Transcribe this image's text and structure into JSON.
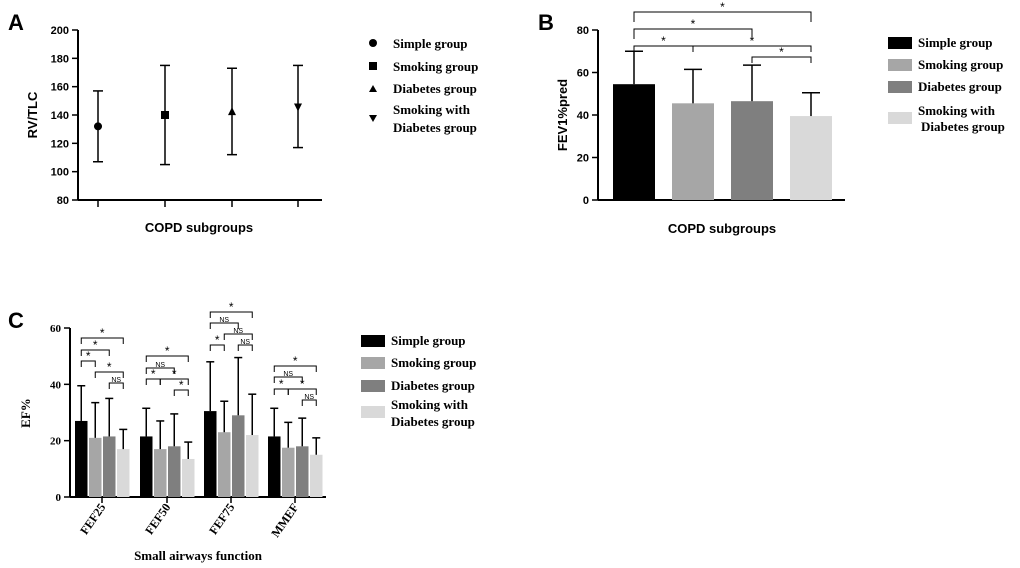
{
  "colors": {
    "simple": "#000000",
    "smoking": "#a6a6a6",
    "diabetes": "#7f7f7f",
    "smoking_diabetes": "#d9d9d9"
  },
  "chart_data": [
    {
      "panel": "A",
      "type": "scatter",
      "xlabel": "COPD subgroups",
      "ylabel": "RV/TLC",
      "ylim": [
        80,
        200
      ],
      "yticks": [
        "80",
        "100",
        "120",
        "140",
        "160",
        "180",
        "200"
      ],
      "grid": false,
      "legend_position": "right",
      "series": [
        {
          "name": "Simple group",
          "marker": "circle",
          "mean": 132,
          "lower": 107,
          "upper": 157
        },
        {
          "name": "Smoking group",
          "marker": "square",
          "mean": 140,
          "lower": 105,
          "upper": 175
        },
        {
          "name": "Diabetes group",
          "marker": "triangle-up",
          "mean": 142,
          "lower": 112,
          "upper": 173
        },
        {
          "name": "Smoking with Diabetes group",
          "marker": "triangle-down",
          "mean": 146,
          "lower": 117,
          "upper": 175
        }
      ],
      "legend": [
        "Simple group",
        "Smoking group",
        "Diabetes group",
        "Smoking with",
        "Diabetes group"
      ]
    },
    {
      "panel": "B",
      "type": "bar",
      "xlabel": "COPD subgroups",
      "ylabel": "FEV1%pred",
      "ylim": [
        0,
        80
      ],
      "yticks": [
        "0",
        "20",
        "40",
        "60",
        "80"
      ],
      "grid": false,
      "legend_position": "right",
      "categories": [
        "Simple group",
        "Smoking group",
        "Diabetes group",
        "Smoking with Diabetes group"
      ],
      "values": [
        54.5,
        45.5,
        46.5,
        39.5
      ],
      "errors": [
        15.5,
        16,
        17,
        11
      ],
      "significance": [
        {
          "from": 0,
          "to": 3,
          "label": "*"
        },
        {
          "from": 0,
          "to": 2,
          "label": "*"
        },
        {
          "from": 0,
          "to": 1,
          "label": "*"
        },
        {
          "from": 1,
          "to": 3,
          "label": "*"
        },
        {
          "from": 2,
          "to": 3,
          "label": "*"
        }
      ],
      "legend": [
        "Simple group",
        "Smoking group",
        "Diabetes group",
        "Smoking with",
        "Diabetes group"
      ]
    },
    {
      "panel": "C",
      "type": "bar",
      "xlabel": "Small airways function",
      "ylabel": "EF%",
      "ylim": [
        0,
        60
      ],
      "yticks": [
        "0",
        "20",
        "40",
        "60"
      ],
      "grid": false,
      "legend_position": "right",
      "categories": [
        "FEF25",
        "FEF50",
        "FEF75",
        "MMEF"
      ],
      "series": [
        {
          "name": "Simple group",
          "values": [
            27,
            21.5,
            30.5,
            21.5
          ],
          "errors": [
            12.5,
            10,
            17.5,
            10
          ]
        },
        {
          "name": "Smoking group",
          "values": [
            21,
            17,
            23,
            17.5
          ],
          "errors": [
            12.5,
            10,
            11,
            9
          ]
        },
        {
          "name": "Diabetes group",
          "values": [
            21.5,
            18,
            29,
            18
          ],
          "errors": [
            13.5,
            11.5,
            20.5,
            10
          ]
        },
        {
          "name": "Smoking with Diabetes group",
          "values": [
            17,
            13.5,
            22,
            15
          ],
          "errors": [
            7,
            6,
            14.5,
            6
          ]
        }
      ],
      "significance": [
        [
          {
            "from": 0,
            "to": 3,
            "label": "*"
          },
          {
            "from": 0,
            "to": 2,
            "label": "*"
          },
          {
            "from": 0,
            "to": 1,
            "label": "*"
          },
          {
            "from": 1,
            "to": 3,
            "label": "*"
          },
          {
            "from": 2,
            "to": 3,
            "label": "NS"
          }
        ],
        [
          {
            "from": 0,
            "to": 3,
            "label": "*"
          },
          {
            "from": 0,
            "to": 2,
            "label": "NS"
          },
          {
            "from": 0,
            "to": 1,
            "label": "*"
          },
          {
            "from": 1,
            "to": 3,
            "label": "*"
          },
          {
            "from": 2,
            "to": 3,
            "label": "*"
          }
        ],
        [
          {
            "from": 0,
            "to": 3,
            "label": "*"
          },
          {
            "from": 0,
            "to": 2,
            "label": "NS"
          },
          {
            "from": 0,
            "to": 1,
            "label": "*"
          },
          {
            "from": 1,
            "to": 3,
            "label": "NS"
          },
          {
            "from": 2,
            "to": 3,
            "label": "NS"
          }
        ],
        [
          {
            "from": 0,
            "to": 3,
            "label": "*"
          },
          {
            "from": 0,
            "to": 2,
            "label": "NS"
          },
          {
            "from": 0,
            "to": 1,
            "label": "*"
          },
          {
            "from": 1,
            "to": 3,
            "label": "*"
          },
          {
            "from": 2,
            "to": 3,
            "label": "NS"
          }
        ]
      ],
      "legend": [
        "Simple group",
        "Smoking group",
        "Diabetes group",
        "Smoking with",
        "Diabetes group"
      ]
    }
  ]
}
